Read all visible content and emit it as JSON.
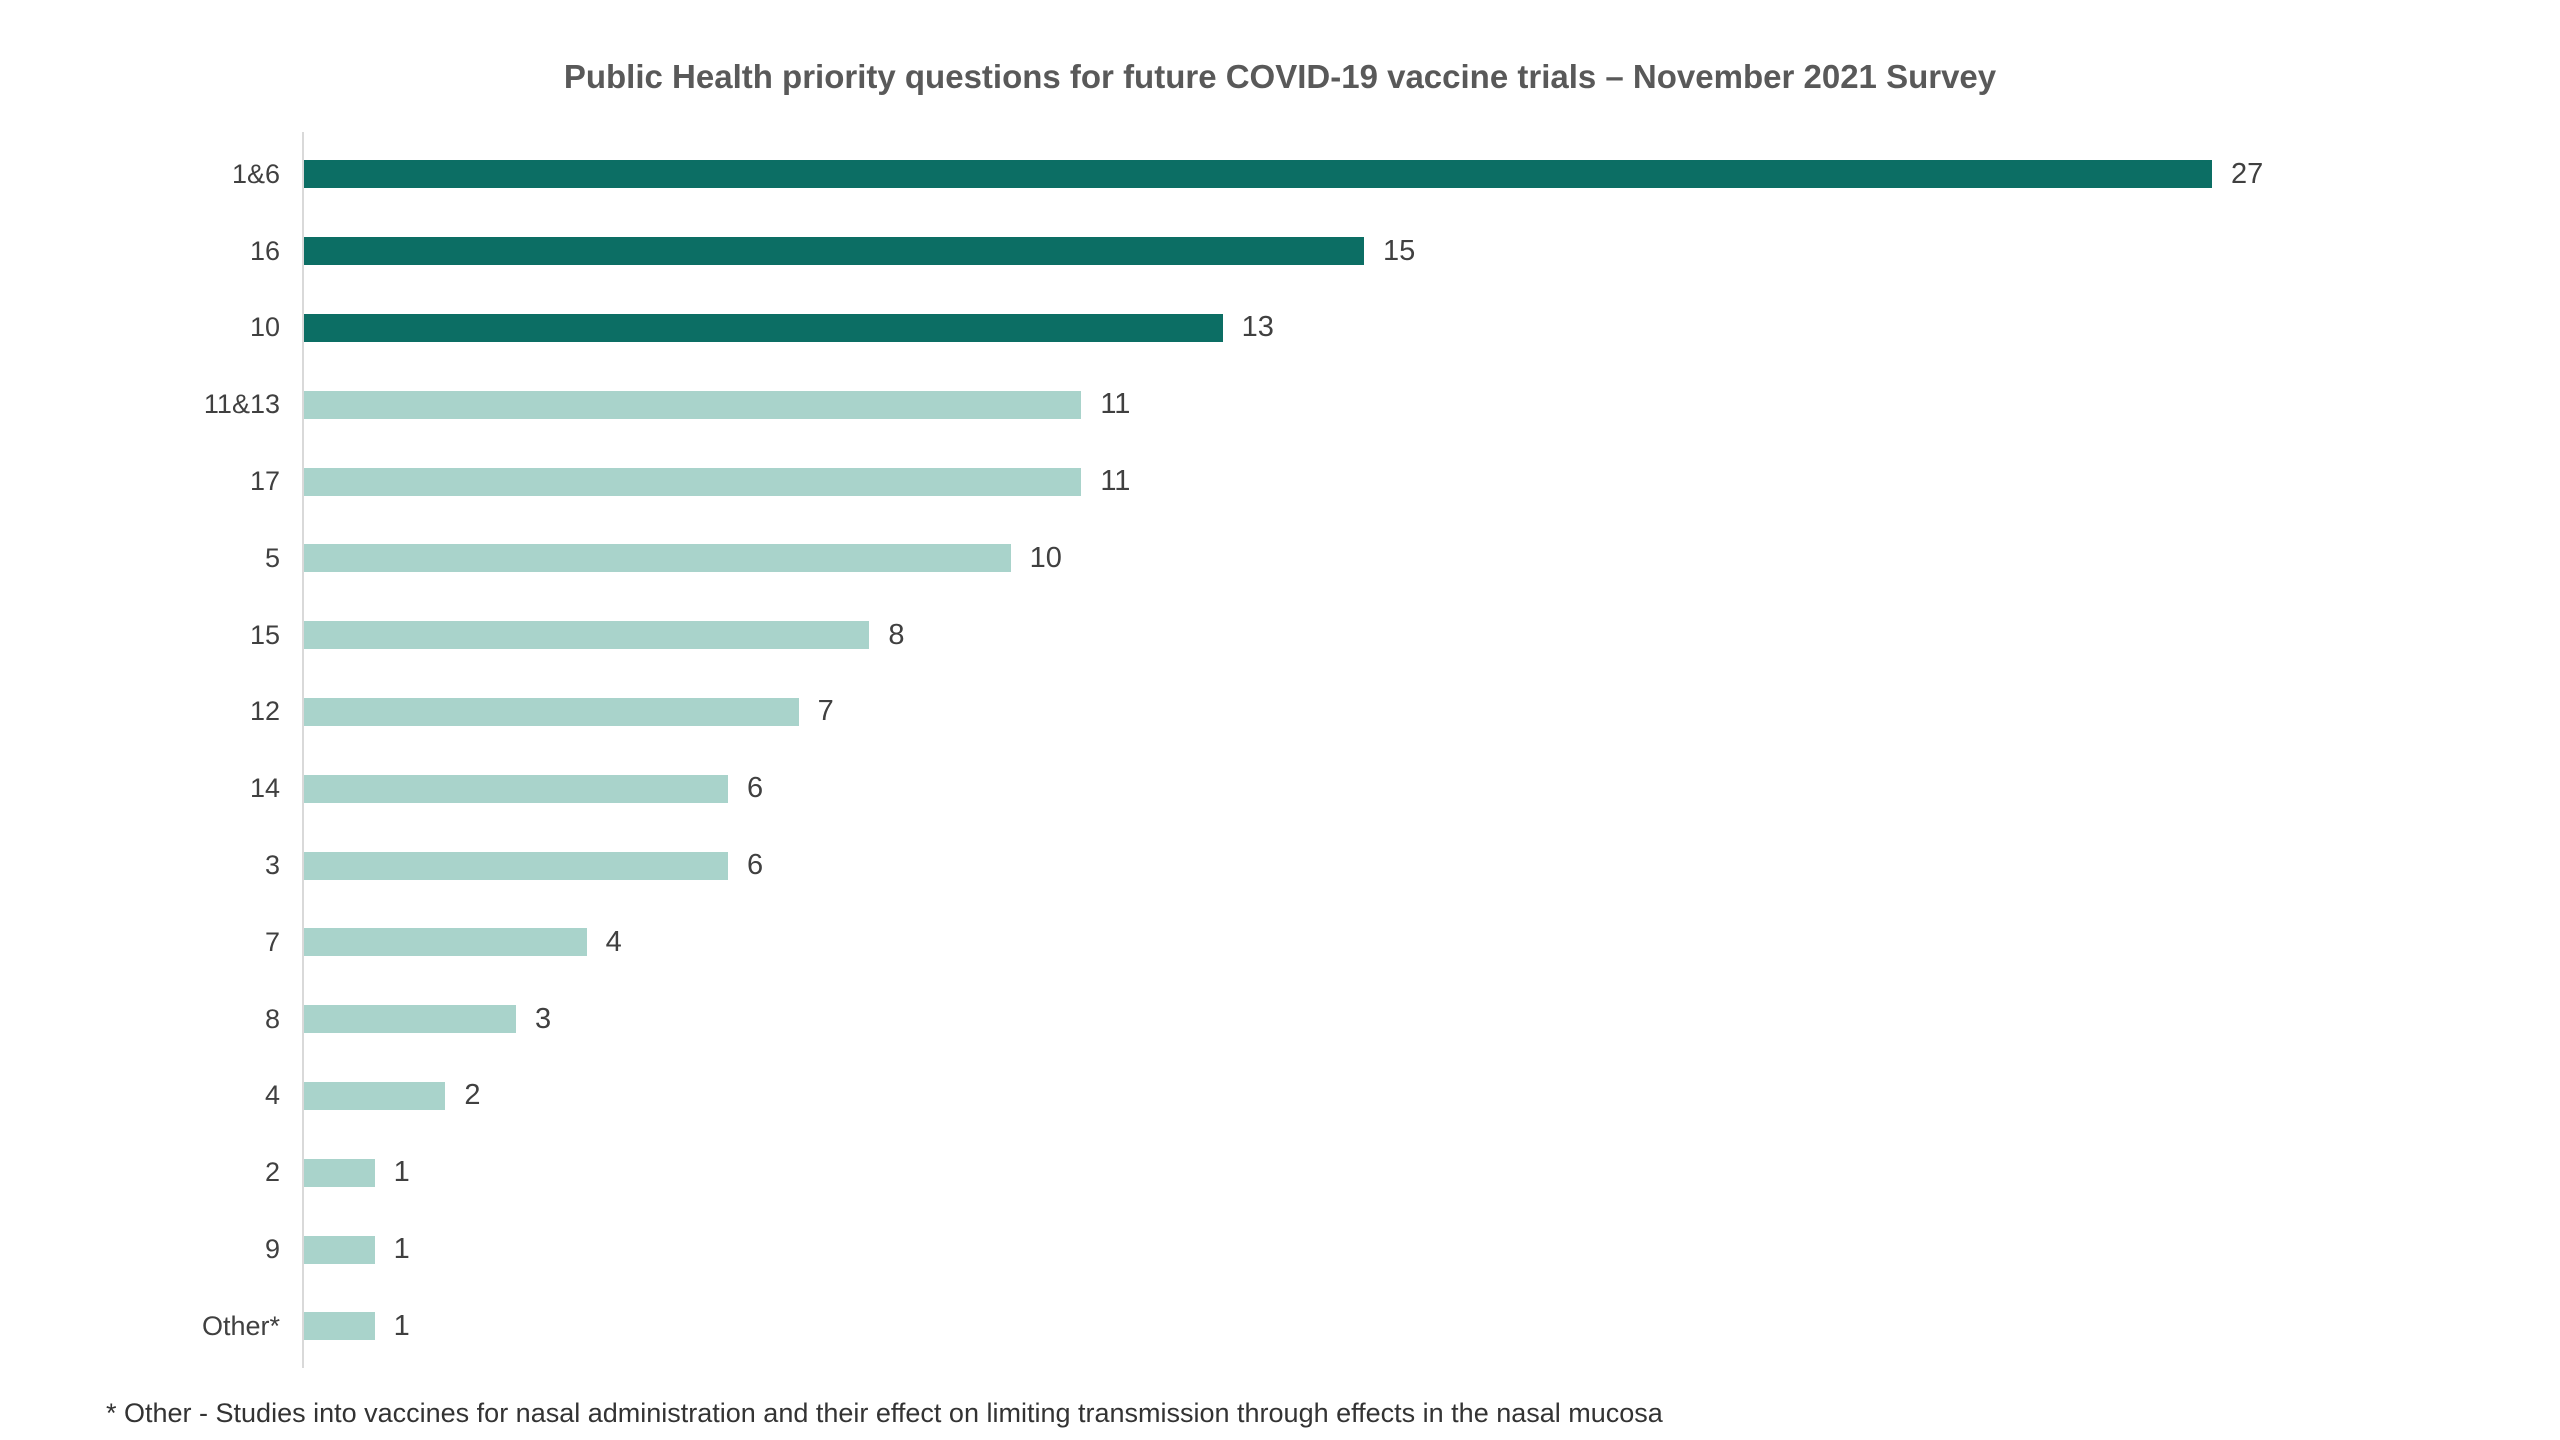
{
  "title": "Public Health priority questions for future COVID-19 vaccine trials – November 2021 Survey",
  "footnote": "* Other - Studies into vaccines for nasal administration and their effect on limiting transmission through effects in the nasal mucosa",
  "chart_data": {
    "type": "bar",
    "orientation": "horizontal",
    "title": "Public Health priority questions for future COVID-19 vaccine trials – November 2021 Survey",
    "xlabel": "",
    "ylabel": "",
    "xlim": [
      0,
      27
    ],
    "grid": false,
    "legend_position": "none",
    "value_labels": true,
    "categories": [
      "1&6",
      "16",
      "10",
      "11&13",
      "17",
      "5",
      "15",
      "12",
      "14",
      "3",
      "7",
      "8",
      "4",
      "2",
      "9",
      "Other*"
    ],
    "values": [
      27,
      15,
      13,
      11,
      11,
      10,
      8,
      7,
      6,
      6,
      4,
      3,
      2,
      1,
      1,
      1
    ],
    "bar_color_keys": [
      "dark",
      "dark",
      "dark",
      "light",
      "light",
      "light",
      "light",
      "light",
      "light",
      "light",
      "light",
      "light",
      "light",
      "light",
      "light",
      "light"
    ],
    "colors": {
      "dark": "#0C6E64",
      "light": "#A9D3CB"
    },
    "title_color": "#595959",
    "label_color": "#404040",
    "axis_line_color": "#D9D9D9"
  }
}
